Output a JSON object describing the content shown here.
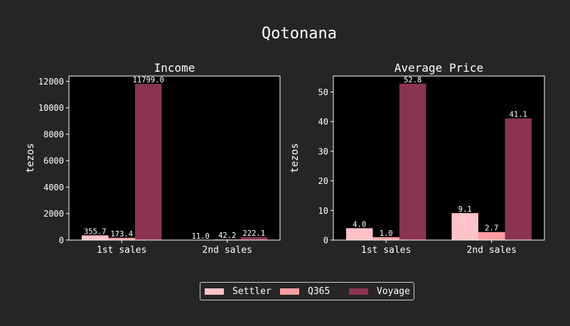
{
  "title": "Qotonana",
  "colors": {
    "background": "#252525",
    "plot_background": "#000000",
    "text": "#ffffff",
    "Settler": "#ffc2c7",
    "Q365": "#ff9da2",
    "Voyage": "#8b3452"
  },
  "legend": {
    "placement": "bottom-center",
    "items": [
      {
        "label": "Settler",
        "color": "#ffc2c7"
      },
      {
        "label": "Q365",
        "color": "#ff9da2"
      },
      {
        "label": "Voyage",
        "color": "#8b3452"
      }
    ]
  },
  "chart_data": [
    {
      "type": "bar",
      "title": "Income",
      "xlabel": "",
      "ylabel": "tezos",
      "categories": [
        "1st sales",
        "2nd sales"
      ],
      "ylim": [
        0,
        12400
      ],
      "yticks": [
        0,
        2000,
        4000,
        6000,
        8000,
        10000,
        12000
      ],
      "grid": false,
      "series": [
        {
          "name": "Settler",
          "values": [
            355.7,
            11.0
          ],
          "labels": [
            "355.7",
            "11.0"
          ]
        },
        {
          "name": "Q365",
          "values": [
            173.4,
            42.2
          ],
          "labels": [
            "173.4",
            "42.2"
          ]
        },
        {
          "name": "Voyage",
          "values": [
            11799.0,
            222.1
          ],
          "labels": [
            "11799.0",
            "222.1"
          ]
        }
      ]
    },
    {
      "type": "bar",
      "title": "Average Price",
      "xlabel": "",
      "ylabel": "tezos",
      "categories": [
        "1st sales",
        "2nd sales"
      ],
      "ylim": [
        0,
        55.4
      ],
      "yticks": [
        0,
        10,
        20,
        30,
        40,
        50
      ],
      "grid": false,
      "series": [
        {
          "name": "Settler",
          "values": [
            4.0,
            9.1
          ],
          "labels": [
            "4.0",
            "9.1"
          ]
        },
        {
          "name": "Q365",
          "values": [
            1.0,
            2.7
          ],
          "labels": [
            "1.0",
            "2.7"
          ]
        },
        {
          "name": "Voyage",
          "values": [
            52.8,
            41.1
          ],
          "labels": [
            "52.8",
            "41.1"
          ]
        }
      ]
    }
  ]
}
